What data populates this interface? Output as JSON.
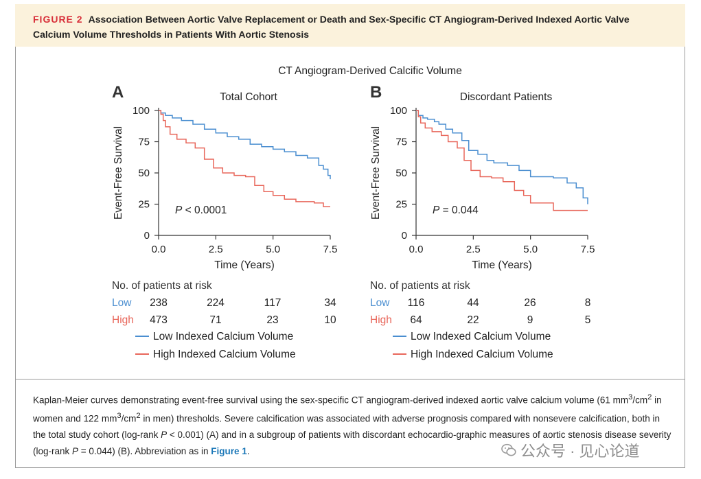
{
  "figure": {
    "label": "FIGURE 2",
    "title": "Association Between Aortic Valve Replacement or Death and Sex-Specific CT Angiogram-Derived Indexed Aortic Valve Calcium Volume Thresholds in Patients With Aortic Stenosis",
    "supertitle": "CT Angiogram-Derived Calcific Volume"
  },
  "colors": {
    "low": "#4a8ed0",
    "high": "#e8665a",
    "label_red": "#d8303a",
    "link": "#1c78b8"
  },
  "chart_data": [
    {
      "type": "line",
      "panel": "A",
      "title": "Total Cohort",
      "xlabel": "Time (Years)",
      "ylabel": "Event-Free Survival",
      "xlim": [
        0,
        7.5
      ],
      "ylim": [
        0,
        100
      ],
      "xticks": [
        "0.0",
        "2.5",
        "5.0",
        "7.5"
      ],
      "yticks": [
        "0",
        "25",
        "50",
        "75",
        "100"
      ],
      "annotation_p": "P",
      "annotation_rest": " < 0.0001",
      "series": [
        {
          "name": "Low Indexed Calcium Volume",
          "key": "low",
          "x": [
            0,
            0.1,
            0.3,
            0.6,
            1.0,
            1.5,
            2.0,
            2.5,
            3.0,
            3.5,
            4.0,
            4.5,
            5.0,
            5.5,
            6.0,
            6.5,
            7.0,
            7.2,
            7.4,
            7.5
          ],
          "y": [
            100,
            98,
            96,
            94,
            92,
            89,
            85,
            82,
            79,
            77,
            73,
            71,
            69,
            67,
            64,
            62,
            56,
            53,
            48,
            45
          ]
        },
        {
          "name": "High Indexed Calcium Volume",
          "key": "high",
          "x": [
            0,
            0.1,
            0.2,
            0.3,
            0.5,
            0.8,
            1.2,
            1.6,
            2.0,
            2.4,
            2.8,
            3.3,
            3.8,
            4.2,
            4.6,
            5.0,
            5.5,
            6.0,
            6.8,
            7.2,
            7.5
          ],
          "y": [
            100,
            97,
            92,
            87,
            81,
            77,
            74,
            70,
            61,
            54,
            50,
            48,
            47,
            40,
            35,
            32,
            29,
            27,
            26,
            23,
            23
          ]
        }
      ],
      "risk_table": {
        "header": "No. of patients at risk",
        "rows": [
          {
            "label": "Low",
            "key": "low",
            "values": [
              "238",
              "224",
              "117",
              "34"
            ]
          },
          {
            "label": "High",
            "key": "high",
            "values": [
              "473",
              "71",
              "23",
              "10"
            ]
          }
        ]
      },
      "legend": [
        "Low Indexed Calcium Volume",
        "High Indexed Calcium Volume"
      ]
    },
    {
      "type": "line",
      "panel": "B",
      "title": "Discordant Patients",
      "xlabel": "Time (Years)",
      "ylabel": "Event-Free Survival",
      "xlim": [
        0,
        7.5
      ],
      "ylim": [
        0,
        100
      ],
      "xticks": [
        "0.0",
        "2.5",
        "5.0",
        "7.5"
      ],
      "yticks": [
        "0",
        "25",
        "50",
        "75",
        "100"
      ],
      "annotation_p": "P",
      "annotation_rest": " = 0.044",
      "series": [
        {
          "name": "Low Indexed Calcium Volume",
          "key": "low",
          "x": [
            0,
            0.1,
            0.3,
            0.5,
            0.8,
            1.0,
            1.3,
            1.6,
            2.0,
            2.3,
            2.7,
            3.1,
            3.4,
            4.0,
            4.5,
            5.0,
            6.0,
            6.6,
            7.0,
            7.3,
            7.5
          ],
          "y": [
            100,
            96,
            94,
            93,
            91,
            89,
            85,
            82,
            76,
            68,
            65,
            60,
            58,
            56,
            52,
            47,
            46,
            42,
            38,
            30,
            25
          ]
        },
        {
          "name": "High Indexed Calcium Volume",
          "key": "high",
          "x": [
            0,
            0.1,
            0.2,
            0.4,
            0.7,
            1.1,
            1.4,
            1.8,
            2.1,
            2.4,
            2.8,
            3.3,
            3.8,
            4.3,
            4.7,
            5.0,
            6.0,
            7.5
          ],
          "y": [
            100,
            95,
            90,
            86,
            83,
            80,
            75,
            70,
            60,
            52,
            47,
            46,
            43,
            36,
            32,
            26,
            20,
            20
          ]
        }
      ],
      "risk_table": {
        "header": "No. of patients at risk",
        "rows": [
          {
            "label": "Low",
            "key": "low",
            "values": [
              "116",
              "44",
              "26",
              "8"
            ]
          },
          {
            "label": "High",
            "key": "high",
            "values": [
              "64",
              "22",
              "9",
              "5"
            ]
          }
        ]
      },
      "legend": [
        "Low Indexed Calcium Volume",
        "High Indexed Calcium Volume"
      ]
    }
  ],
  "caption": {
    "text_1": "Kaplan-Meier curves demonstrating event-free survival using the sex-specific CT angiogram-derived indexed aortic valve calcium volume (61 mm",
    "sup_1": "3",
    "text_2": "/cm",
    "sup_2": "2",
    "text_3": " in women and 122 mm",
    "sup_3": "3",
    "text_4": "/cm",
    "sup_4": "2",
    "text_5": " in men) thresholds. Severe calcification was associated with adverse prognosis compared with nonsevere calcification, both in the total study cohort (log-rank ",
    "p_1": "P",
    "text_6": " < 0.001) (A) and in a subgroup of patients with discordant echocardio-graphic measures of aortic stenosis disease severity (log-rank ",
    "p_2": "P",
    "text_7": " = 0.044) (B). Abbreviation as in ",
    "link": "Figure 1",
    "text_8": "."
  },
  "watermark": {
    "text": "公众号 · 见心论道"
  }
}
